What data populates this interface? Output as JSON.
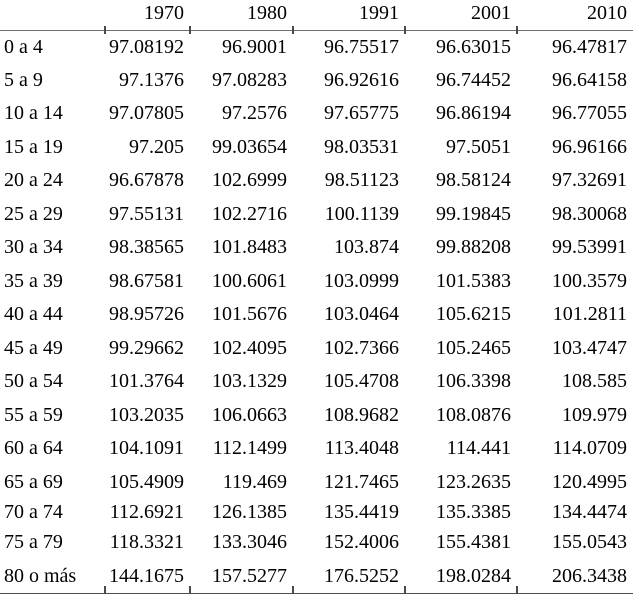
{
  "chart_data": {
    "type": "table",
    "title": "",
    "corner_label": "",
    "columns": [
      "1970",
      "1980",
      "1991",
      "2001",
      "2010"
    ],
    "rows": [
      {
        "label": "0 a 4",
        "values": [
          "97.08192",
          "96.9001",
          "96.75517",
          "96.63015",
          "96.47817"
        ]
      },
      {
        "label": "5 a 9",
        "values": [
          "97.1376",
          "97.08283",
          "96.92616",
          "96.74452",
          "96.64158"
        ]
      },
      {
        "label": "10 a 14",
        "values": [
          "97.07805",
          "97.2576",
          "97.65775",
          "96.86194",
          "96.77055"
        ]
      },
      {
        "label": "15 a 19",
        "values": [
          "97.205",
          "99.03654",
          "98.03531",
          "97.5051",
          "96.96166"
        ]
      },
      {
        "label": "20 a 24",
        "values": [
          "96.67878",
          "102.6999",
          "98.51123",
          "98.58124",
          "97.32691"
        ]
      },
      {
        "label": "25 a 29",
        "values": [
          "97.55131",
          "102.2716",
          "100.1139",
          "99.19845",
          "98.30068"
        ]
      },
      {
        "label": "30 a 34",
        "values": [
          "98.38565",
          "101.8483",
          "103.874",
          "99.88208",
          "99.53991"
        ]
      },
      {
        "label": "35 a 39",
        "values": [
          "98.67581",
          "100.6061",
          "103.0999",
          "101.5383",
          "100.3579"
        ]
      },
      {
        "label": "40 a 44",
        "values": [
          "98.95726",
          "101.5676",
          "103.0464",
          "105.6215",
          "101.2811"
        ]
      },
      {
        "label": "45 a 49",
        "values": [
          "99.29662",
          "102.4095",
          "102.7366",
          "105.2465",
          "103.4747"
        ]
      },
      {
        "label": "50 a 54",
        "values": [
          "101.3764",
          "103.1329",
          "105.4708",
          "106.3398",
          "108.585"
        ]
      },
      {
        "label": "55 a 59",
        "values": [
          "103.2035",
          "106.0663",
          "108.9682",
          "108.0876",
          "109.979"
        ]
      },
      {
        "label": "60 a 64",
        "values": [
          "104.1091",
          "112.1499",
          "113.4048",
          "114.441",
          "114.0709"
        ]
      },
      {
        "label": "65 a 69",
        "values": [
          "105.4909",
          "119.469",
          "121.7465",
          "123.2635",
          "120.4995"
        ]
      },
      {
        "label": "70 a 74",
        "values": [
          "112.6921",
          "126.1385",
          "135.4419",
          "135.3385",
          "134.4474"
        ]
      },
      {
        "label": "75 a 79",
        "values": [
          "118.3321",
          "133.3046",
          "152.4006",
          "155.4381",
          "155.0543"
        ]
      },
      {
        "label": "80 o más",
        "values": [
          "144.1675",
          "157.5277",
          "176.5252",
          "198.0284",
          "206.3438"
        ]
      }
    ]
  }
}
